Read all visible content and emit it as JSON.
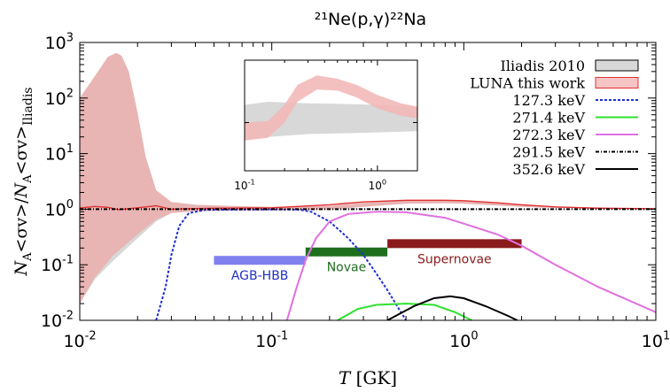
{
  "chart_data": {
    "type": "line",
    "title": "²¹Ne(p,γ)²²Na",
    "xlabel_var": "T",
    "xlabel_unit": "[GK]",
    "ylabel": "N_A<σv>/N_A<σv>_Iliadis",
    "x_scale": "log",
    "y_scale": "log",
    "xlim": [
      0.01,
      10
    ],
    "ylim": [
      0.01,
      1000
    ],
    "x_ticks": [
      {
        "value": 0.01,
        "base": "10",
        "exp": "-2"
      },
      {
        "value": 0.1,
        "base": "10",
        "exp": "-1"
      },
      {
        "value": 1,
        "base": "10",
        "exp": "0"
      },
      {
        "value": 10,
        "base": "10",
        "exp": "1"
      }
    ],
    "y_ticks": [
      {
        "value": 0.01,
        "base": "10",
        "exp": "-2"
      },
      {
        "value": 0.1,
        "base": "10",
        "exp": "-1"
      },
      {
        "value": 1,
        "base": "10",
        "exp": "0"
      },
      {
        "value": 10,
        "base": "10",
        "exp": "1"
      },
      {
        "value": 100,
        "base": "10",
        "exp": "2"
      },
      {
        "value": 1000,
        "base": "10",
        "exp": "3"
      }
    ],
    "legend_position": "top-right",
    "bands": [
      {
        "name": "Iliadis 2010",
        "color": "#d8d8d8",
        "upper": [
          [
            0.01,
            1.05
          ],
          [
            0.013,
            1.2
          ],
          [
            0.015,
            1.35
          ],
          [
            0.018,
            1.3
          ],
          [
            0.022,
            1.18
          ],
          [
            0.03,
            1.12
          ],
          [
            0.04,
            1.1
          ],
          [
            0.06,
            1.08
          ],
          [
            0.1,
            1.06
          ],
          [
            0.3,
            1.04
          ],
          [
            1,
            1.03
          ],
          [
            3,
            1.02
          ],
          [
            10,
            1.02
          ]
        ],
        "lower": [
          [
            0.01,
            0.02
          ],
          [
            0.012,
            0.055
          ],
          [
            0.015,
            0.12
          ],
          [
            0.02,
            0.3
          ],
          [
            0.025,
            0.6
          ],
          [
            0.03,
            0.85
          ],
          [
            0.04,
            0.93
          ],
          [
            0.06,
            0.95
          ],
          [
            0.1,
            0.96
          ],
          [
            0.3,
            0.97
          ],
          [
            1,
            0.97
          ],
          [
            3,
            0.98
          ],
          [
            10,
            0.98
          ]
        ]
      },
      {
        "name": "LUNA this work",
        "color": "#e8b4b4",
        "upper": [
          [
            0.01,
            100
          ],
          [
            0.012,
            250
          ],
          [
            0.014,
            550
          ],
          [
            0.0155,
            650
          ],
          [
            0.0165,
            580
          ],
          [
            0.018,
            300
          ],
          [
            0.02,
            55
          ],
          [
            0.022,
            9
          ],
          [
            0.025,
            2.2
          ],
          [
            0.03,
            1.35
          ],
          [
            0.04,
            1.2
          ],
          [
            0.06,
            1.15
          ],
          [
            0.1,
            1.1
          ],
          [
            0.2,
            1.15
          ],
          [
            0.3,
            1.3
          ],
          [
            0.5,
            1.45
          ],
          [
            0.8,
            1.45
          ],
          [
            1,
            1.4
          ],
          [
            2,
            1.2
          ],
          [
            3,
            1.1
          ],
          [
            10,
            1.05
          ]
        ],
        "lower": [
          [
            0.01,
            0.02
          ],
          [
            0.012,
            0.06
          ],
          [
            0.015,
            0.15
          ],
          [
            0.02,
            0.35
          ],
          [
            0.025,
            0.65
          ],
          [
            0.03,
            0.85
          ],
          [
            0.04,
            0.92
          ],
          [
            0.06,
            0.94
          ],
          [
            0.1,
            0.95
          ],
          [
            0.2,
            0.98
          ],
          [
            0.3,
            1.1
          ],
          [
            0.5,
            1.25
          ],
          [
            0.8,
            1.28
          ],
          [
            1,
            1.25
          ],
          [
            2,
            1.1
          ],
          [
            3,
            1.05
          ],
          [
            10,
            1.02
          ]
        ]
      }
    ],
    "series": [
      {
        "name": "LUNA this work",
        "color": "#e03030",
        "dash": "",
        "points": [
          [
            0.01,
            1.05
          ],
          [
            0.012,
            1.12
          ],
          [
            0.014,
            1.08
          ],
          [
            0.016,
            0.98
          ],
          [
            0.02,
            1.06
          ],
          [
            0.025,
            1.15
          ],
          [
            0.03,
            1.0
          ],
          [
            0.035,
            1.02
          ],
          [
            0.05,
            1.04
          ],
          [
            0.1,
            1.06
          ],
          [
            0.2,
            1.2
          ],
          [
            0.3,
            1.35
          ],
          [
            0.5,
            1.45
          ],
          [
            0.8,
            1.45
          ],
          [
            1,
            1.42
          ],
          [
            1.5,
            1.3
          ],
          [
            2,
            1.2
          ],
          [
            3,
            1.1
          ],
          [
            5,
            1.04
          ],
          [
            10,
            1.02
          ]
        ]
      },
      {
        "name": "127.3 keV",
        "color": "#2030d0",
        "dash": "3,2",
        "points": [
          [
            0.025,
            0.01
          ],
          [
            0.028,
            0.04
          ],
          [
            0.03,
            0.15
          ],
          [
            0.033,
            0.5
          ],
          [
            0.037,
            0.85
          ],
          [
            0.045,
            0.97
          ],
          [
            0.1,
            0.99
          ],
          [
            0.14,
            0.98
          ],
          [
            0.16,
            0.9
          ],
          [
            0.2,
            0.6
          ],
          [
            0.25,
            0.3
          ],
          [
            0.3,
            0.15
          ],
          [
            0.35,
            0.07
          ],
          [
            0.4,
            0.035
          ],
          [
            0.45,
            0.018
          ],
          [
            0.5,
            0.01
          ]
        ]
      },
      {
        "name": "271.4 keV",
        "color": "#30e030",
        "dash": "",
        "points": [
          [
            0.22,
            0.01
          ],
          [
            0.28,
            0.016
          ],
          [
            0.35,
            0.019
          ],
          [
            0.5,
            0.02
          ],
          [
            0.7,
            0.019
          ],
          [
            0.9,
            0.014
          ],
          [
            1.1,
            0.01
          ]
        ]
      },
      {
        "name": "272.3 keV",
        "color": "#e070e0",
        "dash": "",
        "points": [
          [
            0.12,
            0.01
          ],
          [
            0.135,
            0.04
          ],
          [
            0.15,
            0.12
          ],
          [
            0.17,
            0.3
          ],
          [
            0.2,
            0.6
          ],
          [
            0.25,
            0.82
          ],
          [
            0.35,
            0.9
          ],
          [
            0.5,
            0.88
          ],
          [
            0.8,
            0.7
          ],
          [
            1,
            0.55
          ],
          [
            1.5,
            0.35
          ],
          [
            2,
            0.22
          ],
          [
            3,
            0.1
          ],
          [
            5,
            0.04
          ],
          [
            10,
            0.014
          ]
        ]
      },
      {
        "name": "291.5 keV",
        "color": "#000000",
        "dash": "4,2,1,2",
        "points": [
          [
            0.01,
            1
          ],
          [
            10,
            1
          ]
        ]
      },
      {
        "name": "352.6 keV",
        "color": "#000000",
        "dash": "",
        "points": [
          [
            0.4,
            0.01
          ],
          [
            0.55,
            0.018
          ],
          [
            0.7,
            0.025
          ],
          [
            0.85,
            0.027
          ],
          [
            1,
            0.025
          ],
          [
            1.3,
            0.018
          ],
          [
            1.7,
            0.012
          ],
          [
            1.9,
            0.01
          ]
        ]
      }
    ],
    "regions": [
      {
        "label": "AGB-HBB",
        "x_from": 0.05,
        "x_to": 0.15,
        "y": 0.12,
        "color": "#8080ee",
        "text_color": "#2030c0"
      },
      {
        "label": "Novae",
        "x_from": 0.15,
        "x_to": 0.4,
        "y": 0.17,
        "color": "#1e6e1e",
        "text_color": "#1e6e1e"
      },
      {
        "label": "Supernovae",
        "x_from": 0.4,
        "x_to": 2.0,
        "y": 0.24,
        "color": "#8b1a1a",
        "text_color": "#8b1a1a"
      }
    ],
    "inset": {
      "xlim": [
        0.1,
        2
      ],
      "ylim": [
        0.2,
        8
      ],
      "x_ticks": [
        {
          "value": 0.1,
          "base": "10",
          "exp": "-1"
        },
        {
          "value": 1,
          "base": "10",
          "exp": "0"
        }
      ],
      "bands": [
        {
          "name": "Iliadis 2010",
          "color": "#d8d8d8",
          "upper": [
            [
              0.1,
              1.8
            ],
            [
              0.15,
              2.0
            ],
            [
              0.3,
              1.9
            ],
            [
              0.6,
              1.85
            ],
            [
              1,
              1.8
            ],
            [
              2,
              1.7
            ]
          ],
          "lower": [
            [
              0.1,
              0.55
            ],
            [
              0.15,
              0.62
            ],
            [
              0.3,
              0.68
            ],
            [
              0.6,
              0.7
            ],
            [
              1,
              0.72
            ],
            [
              2,
              0.75
            ]
          ]
        },
        {
          "name": "LUNA this work",
          "color": "#f2b8b8",
          "upper": [
            [
              0.1,
              1.0
            ],
            [
              0.15,
              1.05
            ],
            [
              0.2,
              1.8
            ],
            [
              0.25,
              3.5
            ],
            [
              0.35,
              4.8
            ],
            [
              0.5,
              4.3
            ],
            [
              0.7,
              3.5
            ],
            [
              1,
              2.5
            ],
            [
              1.5,
              1.9
            ],
            [
              2,
              1.7
            ]
          ],
          "lower": [
            [
              0.1,
              0.55
            ],
            [
              0.15,
              0.6
            ],
            [
              0.2,
              1.0
            ],
            [
              0.25,
              2.0
            ],
            [
              0.35,
              3.0
            ],
            [
              0.5,
              2.9
            ],
            [
              0.7,
              2.3
            ],
            [
              1,
              1.6
            ],
            [
              1.5,
              1.25
            ],
            [
              2,
              1.15
            ]
          ]
        }
      ]
    }
  }
}
